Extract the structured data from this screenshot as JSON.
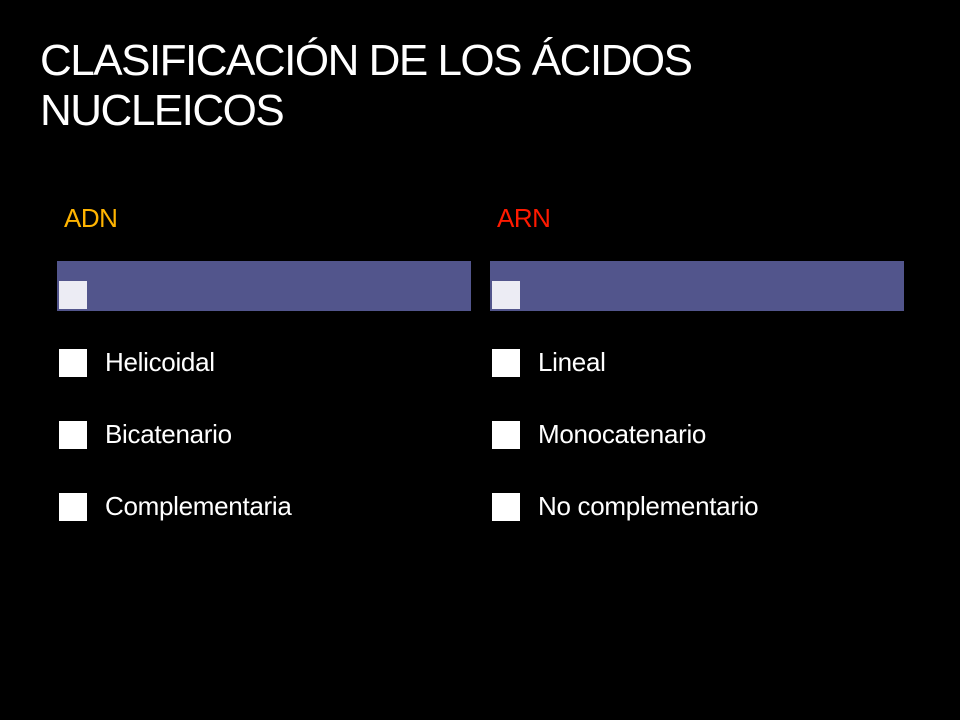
{
  "slide": {
    "title_lines": [
      "CLASIFICACIÓN DE LOS ÁCIDOS",
      "NUCLEICOS"
    ]
  },
  "colors": {
    "background": "#000000",
    "title_text": "#ffffff",
    "header_bar": "#52558c",
    "left_heading": "#ffb400",
    "right_heading": "#ff1a00",
    "bullet": "#ffffff"
  },
  "columns": [
    {
      "heading": "ADN",
      "items": [
        "Helicoidal",
        "Bicatenario",
        "Complementaria"
      ]
    },
    {
      "heading": "ARN",
      "items": [
        "Lineal",
        "Monocatenario",
        "No complementario"
      ]
    }
  ]
}
